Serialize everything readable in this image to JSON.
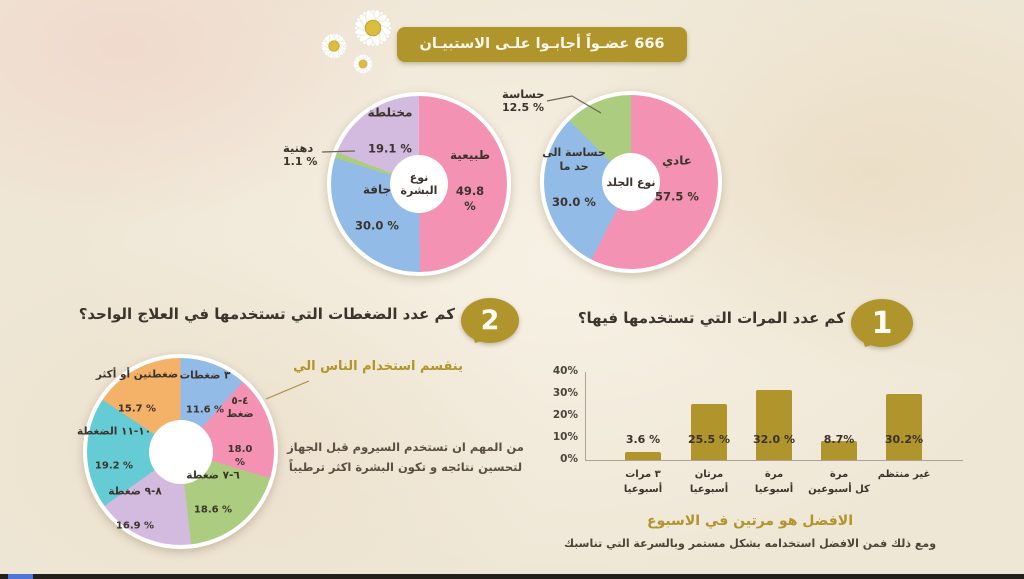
{
  "colors": {
    "gold": "#AF952C",
    "pink": "#F492B3",
    "blue": "#93BBE7",
    "green": "#ACCD80",
    "lavender": "#D3BADF",
    "cyan": "#65CBD5",
    "orange": "#F4B168",
    "text_dark": "#3B342C",
    "progress_blue": "#4F74D8"
  },
  "banner": {
    "text": "666 عضـواً أجابـوا علـى الاستبيـان"
  },
  "q1": {
    "badge": "1",
    "title": "كم عدد المرات التي تستخدمها فيها؟"
  },
  "q2": {
    "badge": "2",
    "title": "كم عدد الضغطات التي تستخدمها في العلاج الواحد؟",
    "subtitle": "ينقسم استخدام الناس الي",
    "note": "من المهم ان تستخدم السيروم قبل الجهاز لتحسين نتائجه و تكون البشرة اكثر ترطيباً"
  },
  "footer": {
    "highlight": "الافضل هو مرتين في الاسبوع",
    "note": "ومع ذلك فمن الافضل استخدامه بشكل مستمر وبالسرعة التي تناسبك"
  },
  "chart_data": [
    {
      "id": "body_skin_pie",
      "type": "pie",
      "title": "نوع الجلد",
      "center_label": "نوع الجلد",
      "slices": [
        {
          "label": "عادي",
          "value": 57.5,
          "pct_label": "57.5 %",
          "color": "#F492B3"
        },
        {
          "label": "حساسة الى حد ما",
          "value": 30.0,
          "pct_label": "30.0 %",
          "color": "#93BBE7"
        },
        {
          "label": "حساسة",
          "value": 12.5,
          "pct_label": "12.5 %",
          "color": "#ACCD80"
        }
      ]
    },
    {
      "id": "face_skin_pie",
      "type": "pie",
      "title": "نوع البشرة",
      "center_label": "نوع البشرة",
      "slices": [
        {
          "label": "طبيعية",
          "value": 49.8,
          "pct_label": "49.8 %",
          "color": "#F492B3"
        },
        {
          "label": "جافة",
          "value": 30.0,
          "pct_label": "30.0 %",
          "color": "#93BBE7"
        },
        {
          "label": "دهنية",
          "value": 1.1,
          "pct_label": "1.1 %",
          "color": "#ACCD80"
        },
        {
          "label": "مختلطة",
          "value": 19.1,
          "pct_label": "19.1 %",
          "color": "#D3BADF"
        }
      ]
    },
    {
      "id": "presses_pie",
      "type": "pie",
      "title": "عدد الضغطات في العلاج الواحد",
      "center_label": "",
      "slices": [
        {
          "label": "٣ ضغطات",
          "value": 11.6,
          "pct_label": "11.6 %",
          "color": "#93BBE7"
        },
        {
          "label": "٤-٥ ضغط",
          "value": 18.0,
          "pct_label": "18.0 %",
          "color": "#F492B3"
        },
        {
          "label": "٦-٧ ضغطة",
          "value": 18.6,
          "pct_label": "18.6 %",
          "color": "#ACCD80"
        },
        {
          "label": "٨-٩ ضغطة",
          "value": 16.9,
          "pct_label": "16.9 %",
          "color": "#D3BADF"
        },
        {
          "label": "١٠-١١ الضغطة",
          "value": 19.2,
          "pct_label": "19.2 %",
          "color": "#65CBD5"
        },
        {
          "label": "ضغطتين أو أكثر",
          "value": 15.7,
          "pct_label": "15.7 %",
          "color": "#F4B168"
        }
      ]
    },
    {
      "id": "frequency_bar",
      "type": "bar",
      "title": "كم عدد المرات التي تستخدمها فيها؟",
      "categories": [
        "٣ مرات\nأسبوعيا",
        "مرتان\nأسبوعيا",
        "مرة\nأسبوعيا",
        "مرة\nكل أسبوعين",
        "غير منتظم"
      ],
      "values": [
        3.6,
        25.5,
        32.0,
        8.7,
        30.2
      ],
      "value_labels": [
        "3.6 %",
        "25.5 %",
        "32.0 %",
        "8.7%",
        "30.2%"
      ],
      "bar_color": "#AF952C",
      "ylim": [
        0,
        40
      ],
      "yticks": [
        "0%",
        "10%",
        "20%",
        "30%",
        "40%"
      ],
      "grid": false
    }
  ]
}
